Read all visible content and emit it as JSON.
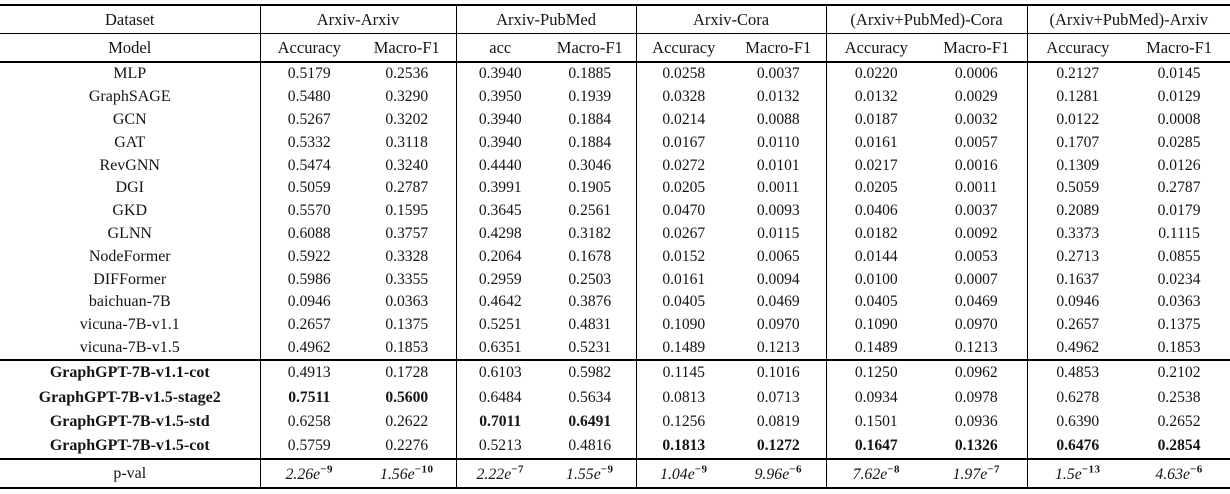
{
  "table": {
    "header": {
      "dataset_label": "Dataset",
      "model_label": "Model",
      "groups": [
        {
          "label": "Arxiv-Arxiv",
          "cols": [
            "Accuracy",
            "Macro-F1"
          ]
        },
        {
          "label": "Arxiv-PubMed",
          "cols": [
            "acc",
            "Macro-F1"
          ]
        },
        {
          "label": "Arxiv-Cora",
          "cols": [
            "Accuracy",
            "Macro-F1"
          ]
        },
        {
          "label": "(Arxiv+PubMed)-Cora",
          "cols": [
            "Accuracy",
            "Macro-F1"
          ]
        },
        {
          "label": "(Arxiv+PubMed)-Arxiv",
          "cols": [
            "Accuracy",
            "Macro-F1"
          ]
        }
      ]
    },
    "rows": [
      {
        "model": "MLP",
        "bold": false,
        "section_start": false,
        "bold_cols": [],
        "values": [
          "0.5179",
          "0.2536",
          "0.3940",
          "0.1885",
          "0.0258",
          "0.0037",
          "0.0220",
          "0.0006",
          "0.2127",
          "0.0145"
        ]
      },
      {
        "model": "GraphSAGE",
        "bold": false,
        "section_start": false,
        "bold_cols": [],
        "values": [
          "0.5480",
          "0.3290",
          "0.3950",
          "0.1939",
          "0.0328",
          "0.0132",
          "0.0132",
          "0.0029",
          "0.1281",
          "0.0129"
        ]
      },
      {
        "model": "GCN",
        "bold": false,
        "section_start": false,
        "bold_cols": [],
        "values": [
          "0.5267",
          "0.3202",
          "0.3940",
          "0.1884",
          "0.0214",
          "0.0088",
          "0.0187",
          "0.0032",
          "0.0122",
          "0.0008"
        ]
      },
      {
        "model": "GAT",
        "bold": false,
        "section_start": false,
        "bold_cols": [],
        "values": [
          "0.5332",
          "0.3118",
          "0.3940",
          "0.1884",
          "0.0167",
          "0.0110",
          "0.0161",
          "0.0057",
          "0.1707",
          "0.0285"
        ]
      },
      {
        "model": "RevGNN",
        "bold": false,
        "section_start": false,
        "bold_cols": [],
        "values": [
          "0.5474",
          "0.3240",
          "0.4440",
          "0.3046",
          "0.0272",
          "0.0101",
          "0.0217",
          "0.0016",
          "0.1309",
          "0.0126"
        ]
      },
      {
        "model": "DGI",
        "bold": false,
        "section_start": false,
        "bold_cols": [],
        "values": [
          "0.5059",
          "0.2787",
          "0.3991",
          "0.1905",
          "0.0205",
          "0.0011",
          "0.0205",
          "0.0011",
          "0.5059",
          "0.2787"
        ]
      },
      {
        "model": "GKD",
        "bold": false,
        "section_start": false,
        "bold_cols": [],
        "values": [
          "0.5570",
          "0.1595",
          "0.3645",
          "0.2561",
          "0.0470",
          "0.0093",
          "0.0406",
          "0.0037",
          "0.2089",
          "0.0179"
        ]
      },
      {
        "model": "GLNN",
        "bold": false,
        "section_start": false,
        "bold_cols": [],
        "values": [
          "0.6088",
          "0.3757",
          "0.4298",
          "0.3182",
          "0.0267",
          "0.0115",
          "0.0182",
          "0.0092",
          "0.3373",
          "0.1115"
        ]
      },
      {
        "model": "NodeFormer",
        "bold": false,
        "section_start": false,
        "bold_cols": [],
        "values": [
          "0.5922",
          "0.3328",
          "0.2064",
          "0.1678",
          "0.0152",
          "0.0065",
          "0.0144",
          "0.0053",
          "0.2713",
          "0.0855"
        ]
      },
      {
        "model": "DIFFormer",
        "bold": false,
        "section_start": false,
        "bold_cols": [],
        "values": [
          "0.5986",
          "0.3355",
          "0.2959",
          "0.2503",
          "0.0161",
          "0.0094",
          "0.0100",
          "0.0007",
          "0.1637",
          "0.0234"
        ]
      },
      {
        "model": "baichuan-7B",
        "bold": false,
        "section_start": false,
        "bold_cols": [],
        "values": [
          "0.0946",
          "0.0363",
          "0.4642",
          "0.3876",
          "0.0405",
          "0.0469",
          "0.0405",
          "0.0469",
          "0.0946",
          "0.0363"
        ]
      },
      {
        "model": "vicuna-7B-v1.1",
        "bold": false,
        "section_start": false,
        "bold_cols": [],
        "values": [
          "0.2657",
          "0.1375",
          "0.5251",
          "0.4831",
          "0.1090",
          "0.0970",
          "0.1090",
          "0.0970",
          "0.2657",
          "0.1375"
        ]
      },
      {
        "model": "vicuna-7B-v1.5",
        "bold": false,
        "section_start": false,
        "bold_cols": [],
        "values": [
          "0.4962",
          "0.1853",
          "0.6351",
          "0.5231",
          "0.1489",
          "0.1213",
          "0.1489",
          "0.1213",
          "0.4962",
          "0.1853"
        ]
      },
      {
        "model": "GraphGPT-7B-v1.1-cot",
        "bold": true,
        "section_start": true,
        "bold_cols": [],
        "values": [
          "0.4913",
          "0.1728",
          "0.6103",
          "0.5982",
          "0.1145",
          "0.1016",
          "0.1250",
          "0.0962",
          "0.4853",
          "0.2102"
        ]
      },
      {
        "model": "GraphGPT-7B-v1.5-stage2",
        "bold": true,
        "section_start": false,
        "bold_cols": [
          0,
          1
        ],
        "values": [
          "0.7511",
          "0.5600",
          "0.6484",
          "0.5634",
          "0.0813",
          "0.0713",
          "0.0934",
          "0.0978",
          "0.6278",
          "0.2538"
        ]
      },
      {
        "model": "GraphGPT-7B-v1.5-std",
        "bold": true,
        "section_start": false,
        "bold_cols": [
          2,
          3
        ],
        "values": [
          "0.6258",
          "0.2622",
          "0.7011",
          "0.6491",
          "0.1256",
          "0.0819",
          "0.1501",
          "0.0936",
          "0.6390",
          "0.2652"
        ]
      },
      {
        "model": "GraphGPT-7B-v1.5-cot",
        "bold": true,
        "section_start": false,
        "bold_cols": [
          4,
          5,
          6,
          7,
          8,
          9
        ],
        "values": [
          "0.5759",
          "0.2276",
          "0.5213",
          "0.4816",
          "0.1813",
          "0.1272",
          "0.1647",
          "0.1326",
          "0.6476",
          "0.2854"
        ]
      }
    ],
    "pval": {
      "label": "p-val",
      "values": [
        {
          "base": "2.26",
          "exp": "−9"
        },
        {
          "base": "1.56",
          "exp": "−10"
        },
        {
          "base": "2.22",
          "exp": "−7"
        },
        {
          "base": "1.55",
          "exp": "−9"
        },
        {
          "base": "1.04",
          "exp": "−9"
        },
        {
          "base": "9.96",
          "exp": "−6"
        },
        {
          "base": "7.62",
          "exp": "−8"
        },
        {
          "base": "1.97",
          "exp": "−7"
        },
        {
          "base": "1.5",
          "exp": "−13"
        },
        {
          "base": "4.63",
          "exp": "−6"
        }
      ]
    }
  }
}
